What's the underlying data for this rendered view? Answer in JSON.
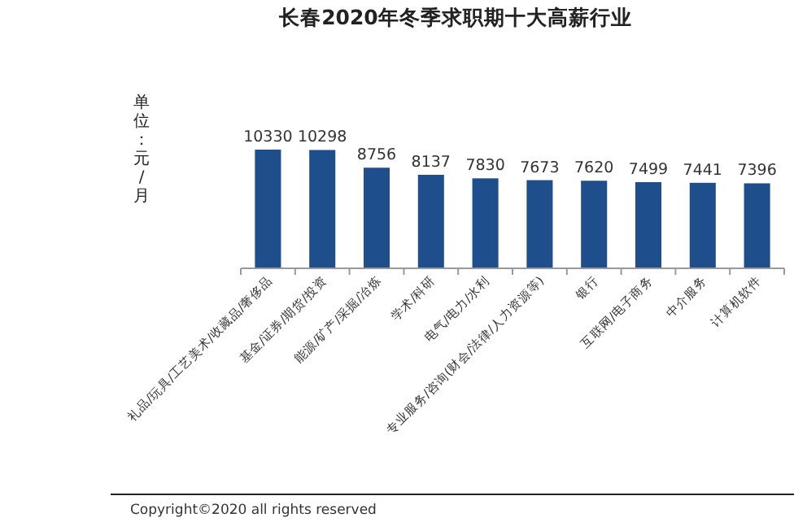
{
  "chart_data": {
    "type": "bar",
    "title": "长春2020年冬季求职期十大高薪行业",
    "ylabel": "单位：元/月",
    "categories": [
      "礼品/玩具/工艺美术/收藏品/奢侈品",
      "基金/证券/期货/投资",
      "能源/矿产/采掘/冶炼",
      "学术/科研",
      "电气/电力/水利",
      "专业服务/咨询(财会/法律/人力资源等)",
      "银行",
      "互联网/电子商务",
      "中介服务",
      "计算机软件"
    ],
    "values": [
      10330,
      10298,
      8756,
      8137,
      7830,
      7673,
      7620,
      7499,
      7441,
      7396
    ],
    "color": "#1f4e8c",
    "data_labels": true,
    "annotations": [
      "Copyright©2020 all rights reserved"
    ]
  }
}
